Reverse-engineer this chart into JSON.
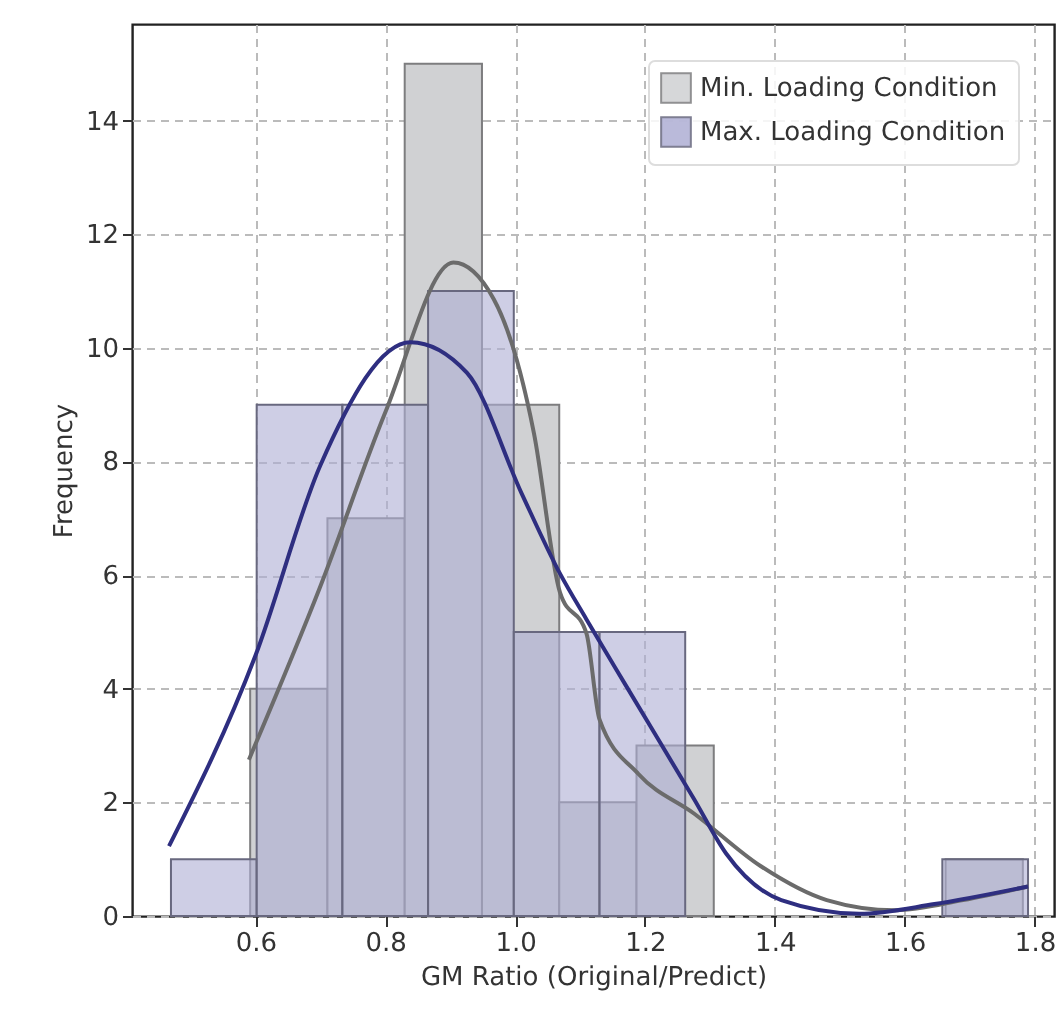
{
  "chart_data": {
    "type": "histogram",
    "xlabel": "GM Ratio (Original/Predict)",
    "ylabel": "Frequency",
    "xlim": [
      0.41,
      1.83
    ],
    "ylim": [
      0,
      15.7
    ],
    "xticks": [
      0.6,
      0.8,
      {
        "value": 1,
        "label": "1.0"
      },
      1.2,
      1.4,
      1.6,
      1.8
    ],
    "yticks": [
      0,
      2,
      4,
      6,
      8,
      10,
      12,
      14
    ],
    "grid": true,
    "legend": "top right",
    "series": [
      {
        "name": "Min. Loading Condition",
        "color": "#d0d1d3",
        "bins": [
          0.592,
          0.711,
          0.83,
          0.949,
          1.068,
          1.187,
          1.306,
          1.425,
          1.544,
          1.663,
          1.782
        ],
        "values": [
          4,
          7,
          15,
          9,
          2,
          3,
          0,
          0,
          0,
          1
        ]
      },
      {
        "name": "Max. Loading Condition",
        "color": "#aeaed4",
        "bins": [
          0.47,
          0.602,
          0.734,
          0.866,
          0.998,
          1.13,
          1.262,
          1.394,
          1.526,
          1.658,
          1.79
        ],
        "values": [
          1,
          9,
          9,
          11,
          5,
          5,
          0,
          0,
          0,
          1
        ]
      },
      {
        "type": "line",
        "color": "#6b6b6b",
        "x": [
          0.59,
          0.7,
          0.8,
          0.905,
          0.967,
          1.029,
          1.069,
          1.11,
          1.13,
          1.19,
          1.276,
          1.378,
          1.48,
          1.585,
          1.69,
          1.79
        ],
        "values": [
          2.75,
          5.8,
          8.86,
          11.5,
          10.86,
          8.5,
          5.7,
          4.97,
          3.46,
          2.5,
          1.8,
          0.88,
          0.28,
          0.1,
          0.28,
          0.52
        ]
      },
      {
        "type": "line",
        "color": "#2e2e80",
        "x": [
          0.467,
          0.6,
          0.7,
          0.839,
          0.926,
          1.01,
          1.069,
          1.11,
          1.171,
          1.276,
          1.325,
          1.41,
          1.53,
          1.646,
          1.79
        ],
        "values": [
          1.23,
          4.58,
          7.93,
          10.1,
          9.56,
          7.44,
          6.03,
          5.22,
          4.05,
          2.05,
          1.1,
          0.28,
          0.04,
          0.21,
          0.52
        ]
      }
    ]
  }
}
